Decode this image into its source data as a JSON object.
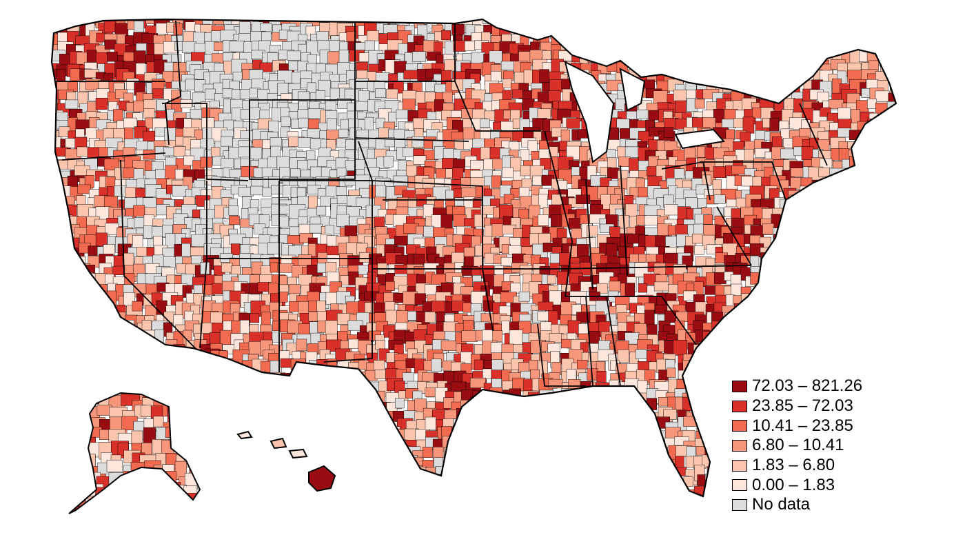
{
  "map": {
    "legend": [
      {
        "label": "72.03 – 821.26",
        "color": "#990d12"
      },
      {
        "label": "23.85 – 72.03",
        "color": "#d9302a"
      },
      {
        "label": "10.41 – 23.85",
        "color": "#f26a4f"
      },
      {
        "label": "6.80 – 10.41",
        "color": "#f7967a"
      },
      {
        "label": "1.83 – 6.80",
        "color": "#fbc4ad"
      },
      {
        "label": "0.00 – 1.83",
        "color": "#fde6dc"
      },
      {
        "label": "No data",
        "color": "#dcdcdc"
      }
    ],
    "border_color": "#000000"
  }
}
